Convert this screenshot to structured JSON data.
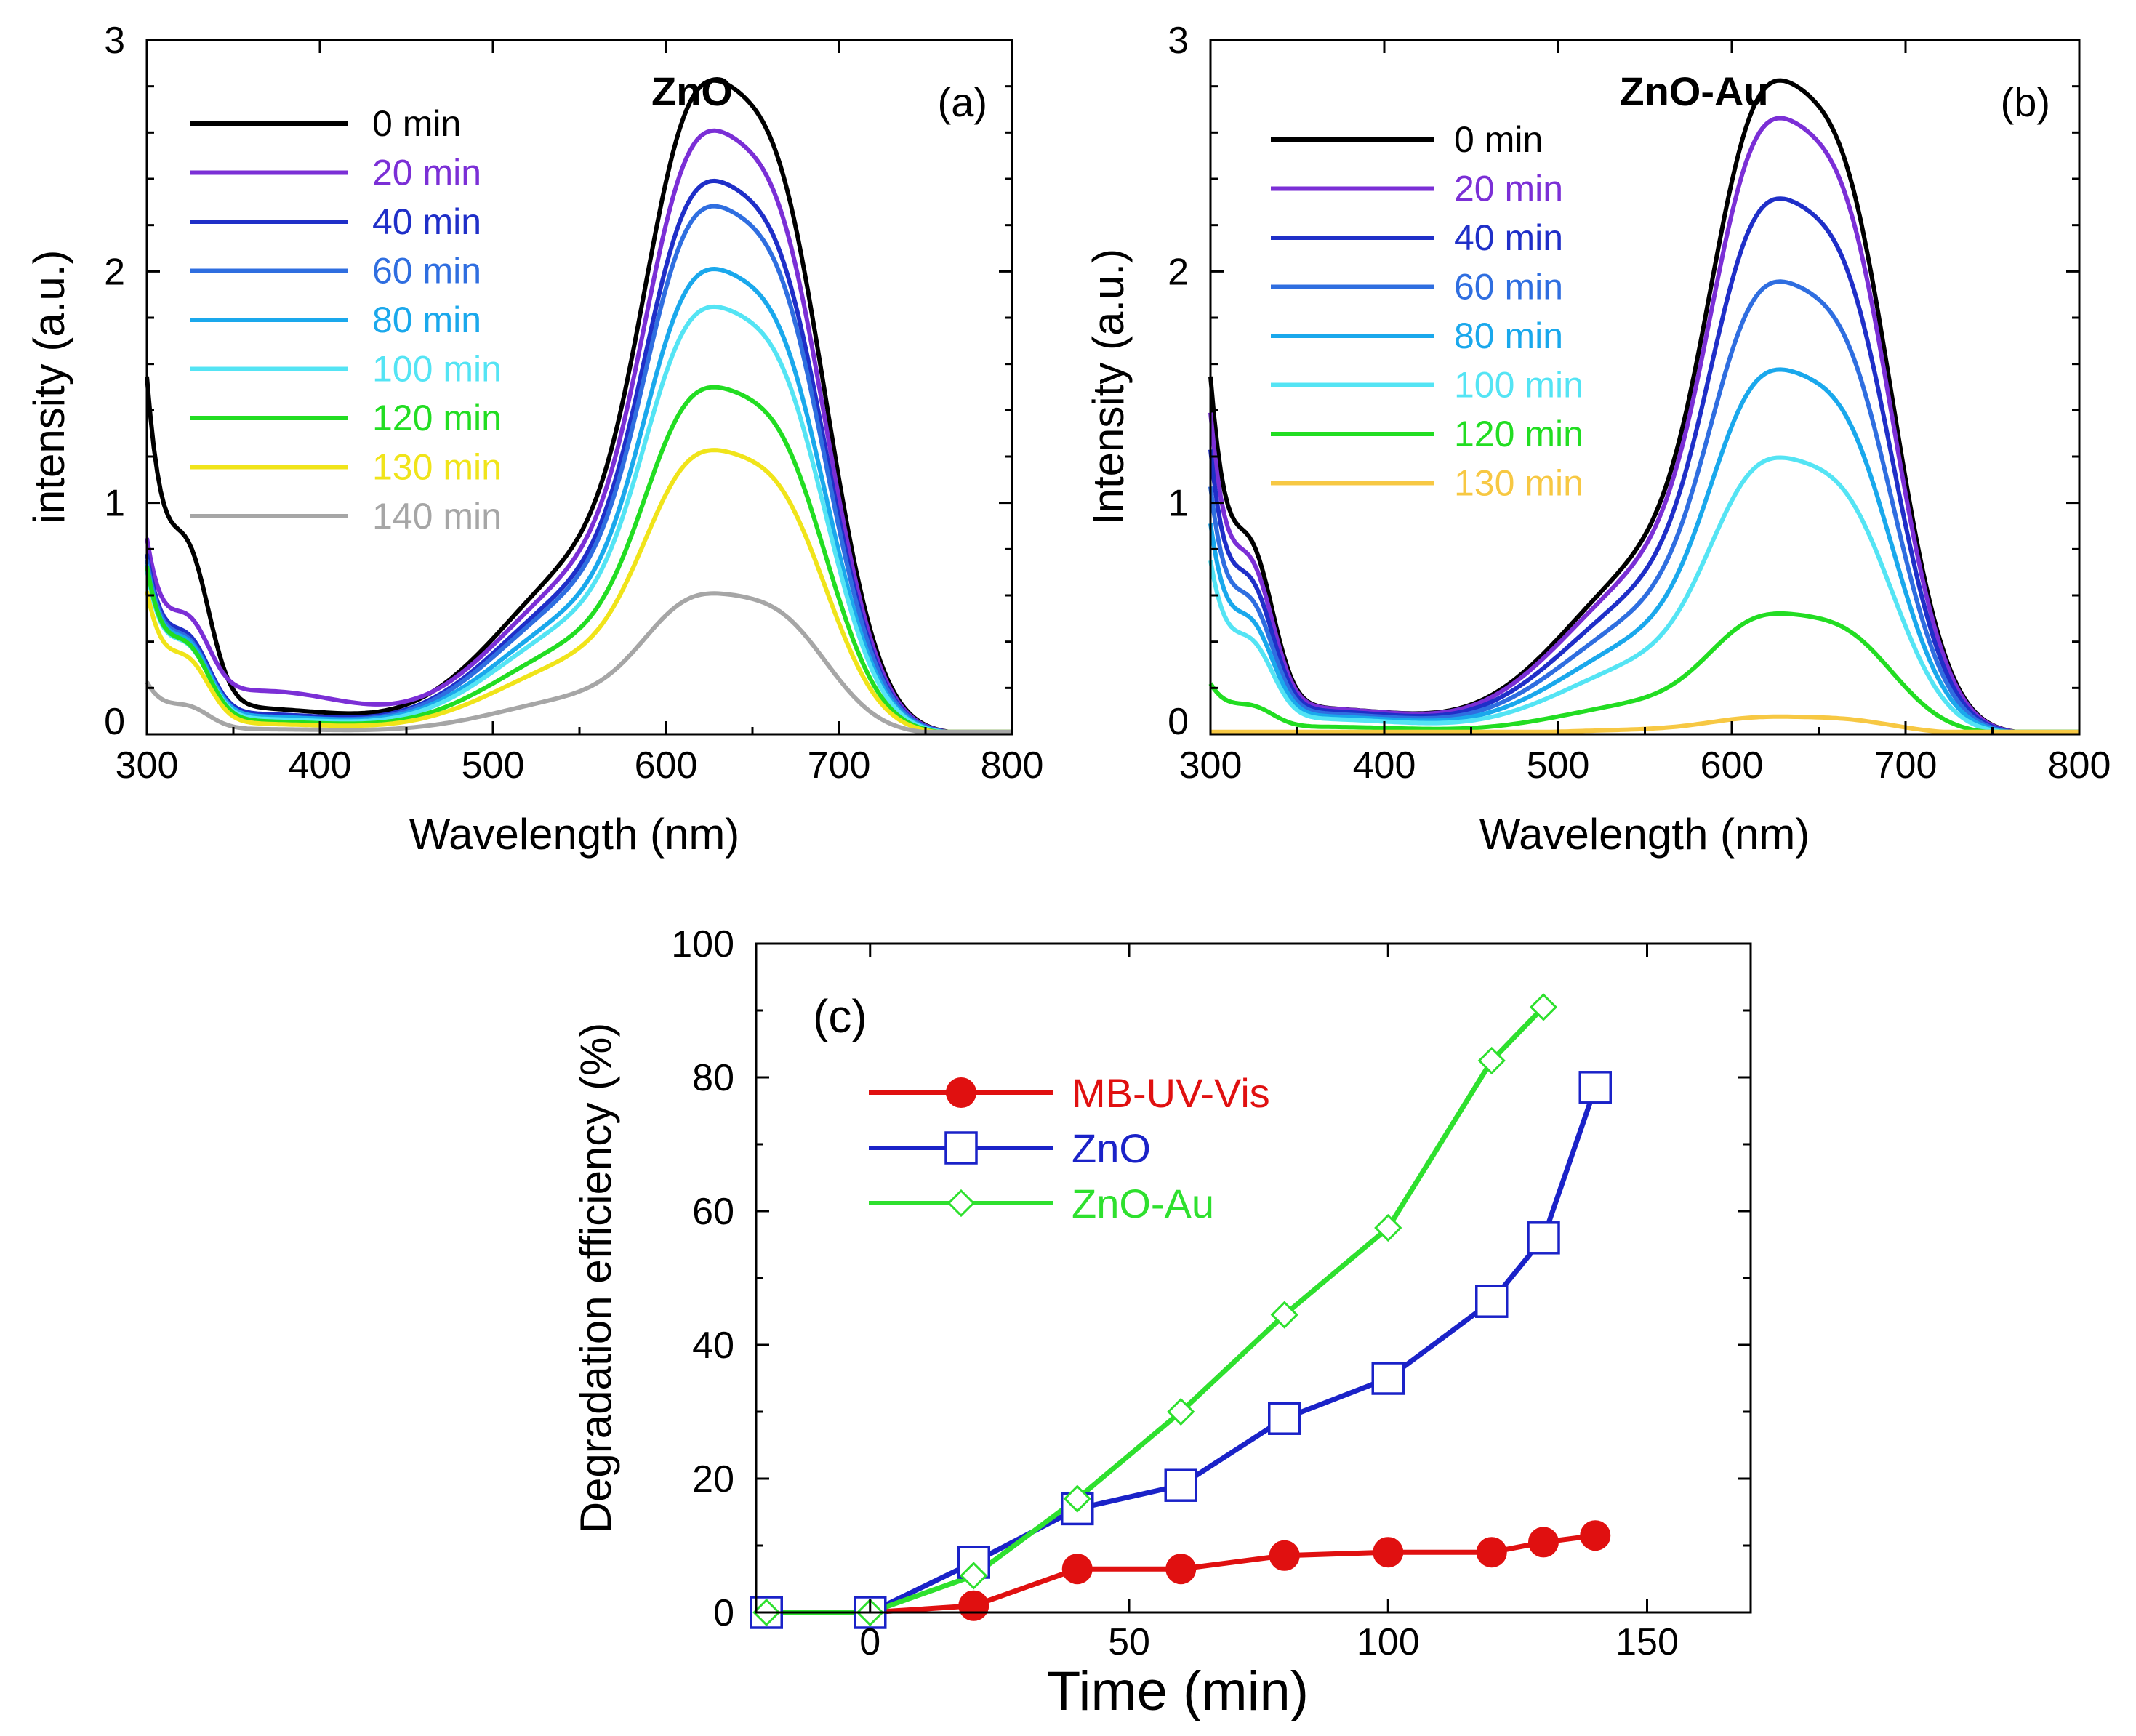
{
  "chart_data": [
    {
      "type": "line",
      "panel_label": "(a)",
      "title": "ZnO",
      "xlabel": "Wavelength (nm)",
      "ylabel": "intensity (a.u.)",
      "xlim": [
        300,
        800
      ],
      "ylim": [
        0,
        3
      ],
      "x_ticks": [
        "300",
        "400",
        "500",
        "600",
        "700",
        "800"
      ],
      "y_ticks": [
        "0",
        "1",
        "2",
        "3"
      ],
      "legend_position": "top-left",
      "series": [
        {
          "name": "0 min",
          "color": "#000000",
          "amp": 2.6,
          "tail": 1.45,
          "lowbase": 0.1
        },
        {
          "name": "20 min",
          "color": "#7b2fd6",
          "amp": 2.4,
          "tail": 0.75,
          "lowbase": 0.18
        },
        {
          "name": "40 min",
          "color": "#1f2fc8",
          "amp": 2.2,
          "tail": 0.72,
          "lowbase": 0.08
        },
        {
          "name": "60 min",
          "color": "#2f6ee0",
          "amp": 2.1,
          "tail": 0.7,
          "lowbase": 0.07
        },
        {
          "name": "80 min",
          "color": "#1aa8ec",
          "amp": 1.85,
          "tail": 0.68,
          "lowbase": 0.07
        },
        {
          "name": "100 min",
          "color": "#54e4f4",
          "amp": 1.7,
          "tail": 0.66,
          "lowbase": 0.06
        },
        {
          "name": "120 min",
          "color": "#22dd22",
          "amp": 1.38,
          "tail": 0.68,
          "lowbase": 0.05
        },
        {
          "name": "130 min",
          "color": "#f0e41a",
          "amp": 1.13,
          "tail": 0.58,
          "lowbase": 0.04
        },
        {
          "name": "140 min",
          "color": "#a6a6a6",
          "amp": 0.56,
          "tail": 0.21,
          "lowbase": 0.02
        }
      ]
    },
    {
      "type": "line",
      "panel_label": "(b)",
      "title": "ZnO-Au",
      "xlabel": "Wavelength (nm)",
      "ylabel": "Intensity (a.u.)",
      "xlim": [
        300,
        800
      ],
      "ylim": [
        0,
        3
      ],
      "x_ticks": [
        "300",
        "400",
        "500",
        "600",
        "700",
        "800"
      ],
      "y_ticks": [
        "0",
        "1",
        "2",
        "3"
      ],
      "legend_position": "top-left",
      "series": [
        {
          "name": "0 min",
          "color": "#000000",
          "amp": 2.6,
          "tail": 1.45,
          "lowbase": 0.1
        },
        {
          "name": "20 min",
          "color": "#7b2fd6",
          "amp": 2.45,
          "tail": 1.3,
          "lowbase": 0.1
        },
        {
          "name": "40 min",
          "color": "#1f2fc8",
          "amp": 2.13,
          "tail": 1.15,
          "lowbase": 0.09
        },
        {
          "name": "60 min",
          "color": "#2f6ee0",
          "amp": 1.8,
          "tail": 1.0,
          "lowbase": 0.08
        },
        {
          "name": "80 min",
          "color": "#1aa8ec",
          "amp": 1.45,
          "tail": 0.85,
          "lowbase": 0.07
        },
        {
          "name": "100 min",
          "color": "#54e4f4",
          "amp": 1.1,
          "tail": 0.7,
          "lowbase": 0.06
        },
        {
          "name": "120 min",
          "color": "#22dd22",
          "amp": 0.48,
          "tail": 0.2,
          "lowbase": 0.03
        },
        {
          "name": "130 min",
          "color": "#f7c843",
          "amp": 0.07,
          "tail": 0.0,
          "lowbase": 0.0
        }
      ]
    },
    {
      "type": "line",
      "panel_label": "(c)",
      "title": "",
      "xlabel": "Time (min)",
      "ylabel": "Degradation efficiency (%)",
      "xlim": [
        -22,
        170
      ],
      "ylim": [
        0,
        100
      ],
      "x_ticks": [
        0,
        50,
        100,
        150
      ],
      "y_ticks": [
        0,
        20,
        40,
        60,
        80,
        100
      ],
      "legend_position": "top-left",
      "series": [
        {
          "name": "MB-UV-Vis",
          "color": "#e01010",
          "marker": "filled-circle",
          "x": [
            -20,
            0,
            20,
            40,
            60,
            80,
            100,
            120,
            130,
            140
          ],
          "y": [
            0,
            0,
            1,
            6.5,
            6.5,
            8.5,
            9,
            9,
            10.5,
            11.5
          ]
        },
        {
          "name": "ZnO",
          "color": "#1a22c8",
          "marker": "open-square",
          "x": [
            -20,
            0,
            20,
            40,
            60,
            80,
            100,
            120,
            130,
            140
          ],
          "y": [
            0,
            0,
            7.5,
            15.5,
            19,
            29,
            35,
            46.5,
            56,
            78.5
          ]
        },
        {
          "name": "ZnO-Au",
          "color": "#2ee02e",
          "marker": "open-diamond",
          "x": [
            -20,
            0,
            20,
            40,
            60,
            80,
            100,
            120,
            130
          ],
          "y": [
            0,
            0,
            5.5,
            17,
            30,
            44.5,
            57.5,
            82.5,
            90.5
          ]
        }
      ]
    }
  ]
}
